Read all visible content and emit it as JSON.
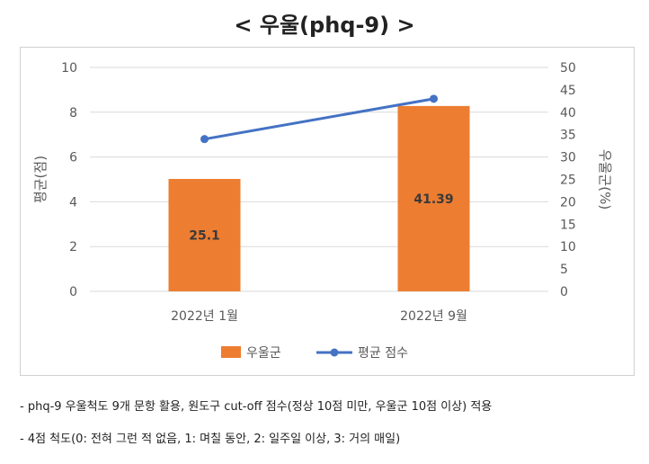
{
  "title": "< 우울(phq-9) >",
  "chart_data": {
    "type": "bar+line",
    "categories": [
      "2022년 1월",
      "2022년 9월"
    ],
    "series": [
      {
        "name": "우울군",
        "type": "bar",
        "axis": "right",
        "values": [
          25.1,
          41.39
        ],
        "labels": [
          "25.1",
          "41.39"
        ],
        "color": "#ED7D31"
      },
      {
        "name": "평균 점수",
        "type": "line",
        "axis": "left",
        "values": [
          6.8,
          8.6
        ],
        "color": "#4472C4"
      }
    ],
    "ylabel_left": "평균(점)",
    "ylabel_right": "우울군(%)",
    "ylim_left": [
      0,
      10
    ],
    "ylim_right": [
      0,
      50
    ],
    "yticks_left": [
      "0",
      "2",
      "4",
      "6",
      "8",
      "10"
    ],
    "yticks_right": [
      "0",
      "5",
      "10",
      "15",
      "20",
      "25",
      "30",
      "35",
      "40",
      "45",
      "50"
    ],
    "grid": true,
    "legend": "bottom"
  },
  "notes": [
    "- phq-9 우울척도 9개 문항 활용, 원도구 cut-off 점수(정상 10점 미만, 우울군 10점 이상) 적용",
    "- 4점 척도(0: 전혀 그런 적 없음, 1: 며칠 동안, 2: 일주일 이상, 3: 거의 매일)"
  ]
}
